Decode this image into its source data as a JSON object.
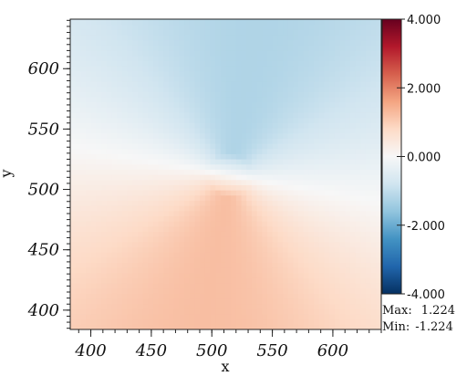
{
  "chart_data": {
    "type": "heatmap",
    "title": "",
    "xlabel": "x",
    "ylabel": "y",
    "xlim": [
      383,
      640
    ],
    "ylim": [
      384,
      641
    ],
    "x_ticks": [
      400,
      450,
      500,
      550,
      600
    ],
    "y_ticks": [
      400,
      450,
      500,
      550,
      600
    ],
    "x_tick_labels": [
      "400",
      "450",
      "500",
      "550",
      "600"
    ],
    "y_tick_labels": [
      "400",
      "450",
      "500",
      "550",
      "600"
    ],
    "x_minor_step": 10,
    "y_minor_step": 5,
    "field": {
      "description_of_pattern": "vortex-like angular field centred near the singularity",
      "center": [
        515,
        512
      ],
      "amplitude": 1.224,
      "peak_angle_deg": 260
    },
    "colorbar": {
      "colormap": "RdBu_r",
      "range": [
        -4.0,
        4.0
      ],
      "tick_values": [
        -4.0,
        -2.0,
        0.0,
        2.0,
        4.0
      ],
      "tick_labels": [
        "-4.000",
        "-2.000",
        "0.000",
        "2.000",
        "4.000"
      ],
      "stops": [
        "#053061",
        "#2166ac",
        "#4393c3",
        "#92c5de",
        "#d1e5f0",
        "#f7f7f7",
        "#fddbc7",
        "#f4a582",
        "#d6604d",
        "#b2182b",
        "#67001f"
      ]
    },
    "stats": {
      "max_label": "Max:",
      "max_value": "1.224",
      "min_label": "Min:",
      "min_value": "-1.224"
    }
  }
}
